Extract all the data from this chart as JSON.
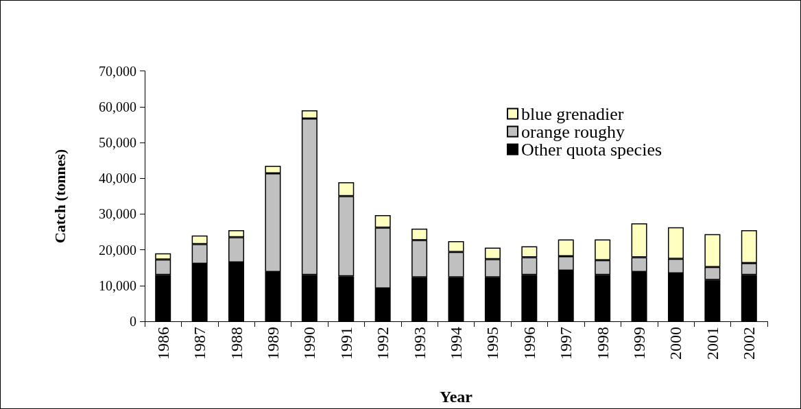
{
  "chart_data": {
    "type": "bar",
    "stacked": true,
    "xlabel": "Year",
    "ylabel": "Catch (tonnes)",
    "categories": [
      "1986",
      "1987",
      "1988",
      "1989",
      "1990",
      "1991",
      "1992",
      "1993",
      "1994",
      "1995",
      "1996",
      "1997",
      "1998",
      "1999",
      "2000",
      "2001",
      "2002"
    ],
    "series": [
      {
        "name": "Other quota species",
        "color": "#000000",
        "values": [
          13000,
          16100,
          16500,
          13800,
          13000,
          12600,
          9200,
          12300,
          12300,
          12300,
          13000,
          14200,
          13000,
          13800,
          13400,
          11600,
          13000
        ]
      },
      {
        "name": "orange roughy",
        "color": "#c0c0c0",
        "values": [
          4300,
          5500,
          7000,
          27600,
          43700,
          22400,
          17000,
          10400,
          7100,
          5100,
          4900,
          4000,
          4100,
          4100,
          4100,
          3600,
          3300
        ]
      },
      {
        "name": "blue grenadier",
        "color": "#ffffc0",
        "values": [
          1700,
          2400,
          2000,
          2100,
          2300,
          3900,
          3500,
          3200,
          3000,
          3200,
          3100,
          4700,
          5800,
          9500,
          8800,
          9200,
          9200
        ]
      }
    ],
    "ylim": [
      0,
      70000
    ],
    "yticks": [
      0,
      {
        "value": 10000,
        "label": "10,000"
      },
      {
        "value": 20000,
        "label": "20,000"
      },
      {
        "value": 30000,
        "label": "30,000"
      },
      {
        "value": 40000,
        "label": "40,000"
      },
      {
        "value": 50000,
        "label": "50,000"
      },
      {
        "value": 60000,
        "label": "60,000"
      },
      {
        "value": 70000,
        "label": "70,000"
      }
    ],
    "grid": false,
    "legend": "top right"
  }
}
